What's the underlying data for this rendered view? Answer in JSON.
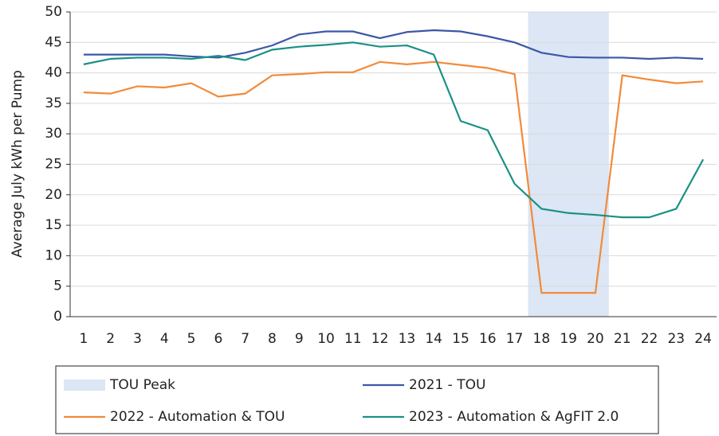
{
  "chart_data": {
    "type": "line",
    "y_label": "Average July kWh per Pump",
    "x": [
      1,
      2,
      3,
      4,
      5,
      6,
      7,
      8,
      9,
      10,
      11,
      12,
      13,
      14,
      15,
      16,
      17,
      18,
      19,
      20,
      21,
      22,
      23,
      24
    ],
    "xlim": [
      0.5,
      24.5
    ],
    "xticks": [
      1,
      2,
      3,
      4,
      5,
      6,
      7,
      8,
      9,
      10,
      11,
      12,
      13,
      14,
      15,
      16,
      17,
      18,
      19,
      20,
      21,
      22,
      23,
      24
    ],
    "ylim": [
      0,
      50
    ],
    "yticks": [
      0,
      5,
      10,
      15,
      20,
      25,
      30,
      35,
      40,
      45,
      50
    ],
    "grid": true,
    "shaded_region": {
      "name": "TOU Peak",
      "color": "#dce6f4",
      "from": 17.5,
      "to": 20.5
    },
    "series": [
      {
        "name": "2021 - TOU",
        "color": "#3b57a7",
        "values": [
          43,
          43,
          43,
          43,
          42.7,
          42.5,
          43.3,
          44.5,
          46.3,
          46.8,
          46.8,
          45.7,
          46.7,
          47,
          46.8,
          46,
          45,
          43.3,
          42.6,
          42.5,
          42.5,
          42.3,
          42.5,
          42.3
        ]
      },
      {
        "name": "2022 - Automation & TOU",
        "color": "#f28a3a",
        "values": [
          36.8,
          36.6,
          37.8,
          37.6,
          38.3,
          36.1,
          36.6,
          39.6,
          39.8,
          40.1,
          40.1,
          41.8,
          41.4,
          41.8,
          41.3,
          40.8,
          39.8,
          3.9,
          3.9,
          3.9,
          39.6,
          38.9,
          38.3,
          38.6
        ]
      },
      {
        "name": "2023 - Automation & AgFIT 2.0",
        "color": "#1b9085",
        "values": [
          41.4,
          42.3,
          42.5,
          42.5,
          42.3,
          42.8,
          42.1,
          43.8,
          44.3,
          44.6,
          45,
          44.3,
          44.5,
          43,
          32.1,
          30.6,
          21.8,
          17.7,
          17,
          16.7,
          16.3,
          16.3,
          17.7,
          25.8
        ]
      }
    ]
  }
}
